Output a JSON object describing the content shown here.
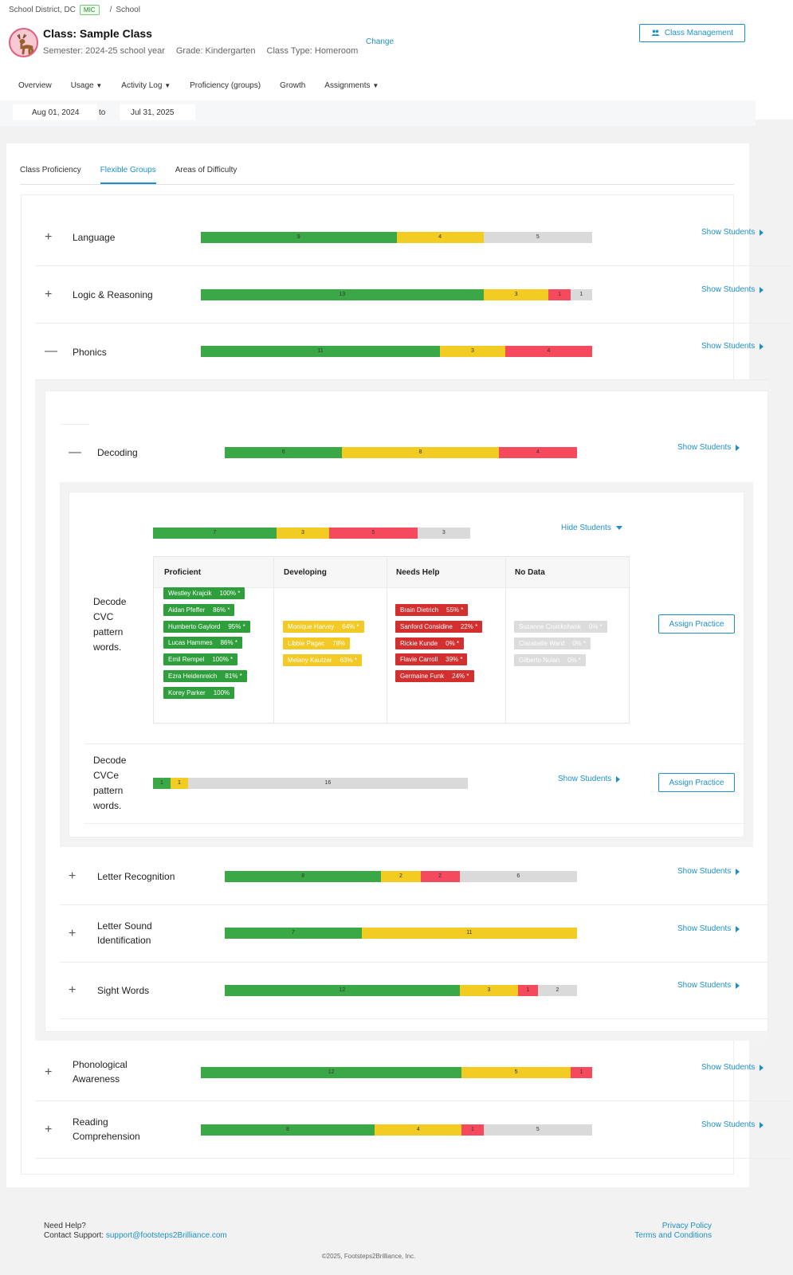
{
  "breadcrumb": {
    "district": "School District, DC",
    "badge": "MIC",
    "sep": "/",
    "school": "School"
  },
  "class_header": {
    "title": "Class: Sample Class",
    "semester": "Semester: 2024-25 school year",
    "grade": "Grade: Kindergarten",
    "class_type": "Class Type: Homeroom",
    "change": "Change",
    "class_management": "Class Management"
  },
  "nav": [
    "Overview",
    "Usage",
    "Activity Log",
    "Proficiency (groups)",
    "Growth",
    "Assignments"
  ],
  "dates": {
    "from": "Aug 01, 2024",
    "to_label": "to",
    "to": "Jul 31, 2025"
  },
  "tabs": [
    "Class Proficiency",
    "Flexible Groups",
    "Areas of Difficulty"
  ],
  "show_students": "Show Students",
  "hide_students": "Hide Students",
  "assign_practice": "Assign Practice",
  "colors": {
    "proficient": "#3aa846",
    "developing": "#f2cb23",
    "needs_help": "#f54a5e",
    "no_data": "#dadada",
    "accent": "#1e90c8"
  },
  "rows": {
    "language": {
      "label": "Language",
      "segments": [
        9,
        4,
        5
      ]
    },
    "logic": {
      "label": "Logic & Reasoning",
      "segments": [
        13,
        3,
        1,
        1
      ]
    },
    "phonics": {
      "label": "Phonics",
      "segments": [
        11,
        3,
        4
      ]
    },
    "decoding": {
      "label": "Decoding",
      "segments": [
        6,
        8,
        4
      ]
    },
    "cvc": {
      "label": "Decode CVC pattern words.",
      "segments": [
        7,
        3,
        5,
        3
      ]
    },
    "cvce": {
      "label": "Decode CVCe pattern words.",
      "segments": [
        1,
        1,
        16
      ]
    },
    "letter_recognition": {
      "label": "Letter Recognition",
      "segments": [
        8,
        2,
        2,
        6
      ]
    },
    "letter_sound": {
      "label": "Letter Sound Identification",
      "segments": [
        7,
        11
      ]
    },
    "sight_words": {
      "label": "Sight Words",
      "segments": [
        12,
        3,
        1,
        2
      ]
    },
    "phonological": {
      "label": "Phonological Awareness",
      "segments": [
        12,
        5,
        1
      ]
    },
    "reading": {
      "label": "Reading Comprehension",
      "segments": [
        8,
        4,
        1,
        5
      ]
    }
  },
  "groups": {
    "headers": [
      "Proficient",
      "Developing",
      "Needs Help",
      "No Data"
    ],
    "proficient": [
      {
        "name": "Westley Krajcik",
        "score": "100% *"
      },
      {
        "name": "Aidan Pfeffer",
        "score": "86% *"
      },
      {
        "name": "Humberto Gaylord",
        "score": "95% *"
      },
      {
        "name": "Lucas Hammes",
        "score": "86% *"
      },
      {
        "name": "Emil Rempel",
        "score": "100% *"
      },
      {
        "name": "Ezra Heidenreich",
        "score": "81% *"
      },
      {
        "name": "Korey Parker",
        "score": "100%"
      }
    ],
    "developing": [
      {
        "name": "Monique Harvey",
        "score": "64% *"
      },
      {
        "name": "Libbie Pagac",
        "score": "78%"
      },
      {
        "name": "Melany Kautzer",
        "score": "63% *"
      }
    ],
    "needs_help": [
      {
        "name": "Brain Dietrich",
        "score": "55% *"
      },
      {
        "name": "Sanford Considine",
        "score": "22% *"
      },
      {
        "name": "Rickie Kunde",
        "score": "0% *"
      },
      {
        "name": "Flavie Carroll",
        "score": "39% *"
      },
      {
        "name": "Germaine Funk",
        "score": "24% *"
      }
    ],
    "no_data": [
      {
        "name": "Suzanne Cruickshank",
        "score": "0% *"
      },
      {
        "name": "Clarabelle Ward",
        "score": "0% *"
      },
      {
        "name": "Gilberto Nolan",
        "score": "0% *"
      }
    ]
  },
  "footer": {
    "need_help": "Need Help?",
    "contact": "Contact Support:",
    "email": "support@footsteps2Brilliance.com",
    "privacy": "Privacy Policy",
    "terms": "Terms and Conditions",
    "copyright": "©2025, Footsteps2Brilliance, Inc."
  }
}
